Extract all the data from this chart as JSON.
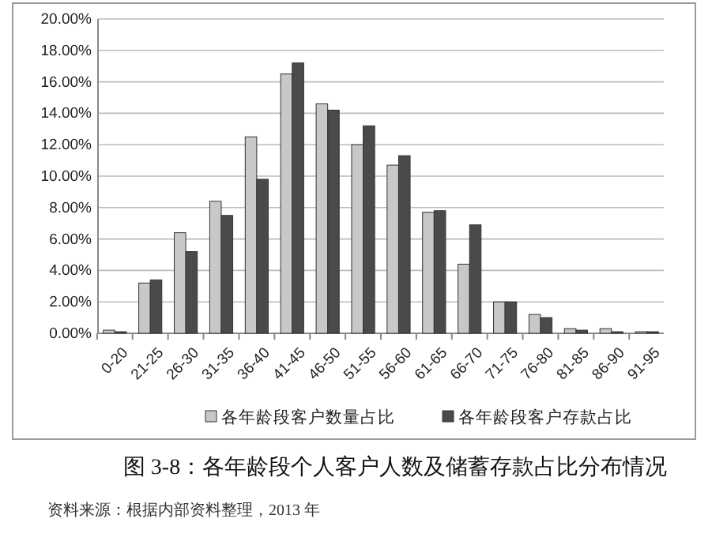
{
  "chart_data": {
    "type": "bar",
    "title": "图 3-8：各年龄段个人客户人数及储蓄存款占比分布情况",
    "categories": [
      "0-20",
      "21-25",
      "26-30",
      "31-35",
      "36-40",
      "41-45",
      "46-50",
      "51-55",
      "56-60",
      "61-65",
      "66-70",
      "71-75",
      "76-80",
      "81-85",
      "86-90",
      "91-95"
    ],
    "series": [
      {
        "name": "各年龄段客户数量占比",
        "color": "#c8c8c8",
        "values": [
          0.2,
          3.2,
          6.4,
          8.4,
          12.5,
          16.5,
          14.6,
          12.0,
          10.7,
          7.7,
          4.4,
          2.0,
          1.2,
          0.3,
          0.3,
          0.1
        ]
      },
      {
        "name": "各年龄段客户存款占比",
        "color": "#4a4a4a",
        "values": [
          0.1,
          3.4,
          5.2,
          7.5,
          9.8,
          17.2,
          14.2,
          13.2,
          11.3,
          7.8,
          6.9,
          2.0,
          1.0,
          0.2,
          0.1,
          0.1
        ]
      }
    ],
    "ylim": [
      0,
      20
    ],
    "yticks": [
      {
        "value": 0,
        "label": "0.00%"
      },
      {
        "value": 2,
        "label": "2.00%"
      },
      {
        "value": 4,
        "label": "4.00%"
      },
      {
        "value": 6,
        "label": "6.00%"
      },
      {
        "value": 8,
        "label": "8.00%"
      },
      {
        "value": 10,
        "label": "10.00%"
      },
      {
        "value": 12,
        "label": "12.00%"
      },
      {
        "value": 14,
        "label": "14.00%"
      },
      {
        "value": 16,
        "label": "16.00%"
      },
      {
        "value": 18,
        "label": "18.00%"
      },
      {
        "value": 20,
        "label": "20.00%"
      }
    ],
    "grid": "y",
    "legend": "bottom",
    "annotations": [
      "资料来源：根据内部资料整理，2013 年"
    ]
  }
}
